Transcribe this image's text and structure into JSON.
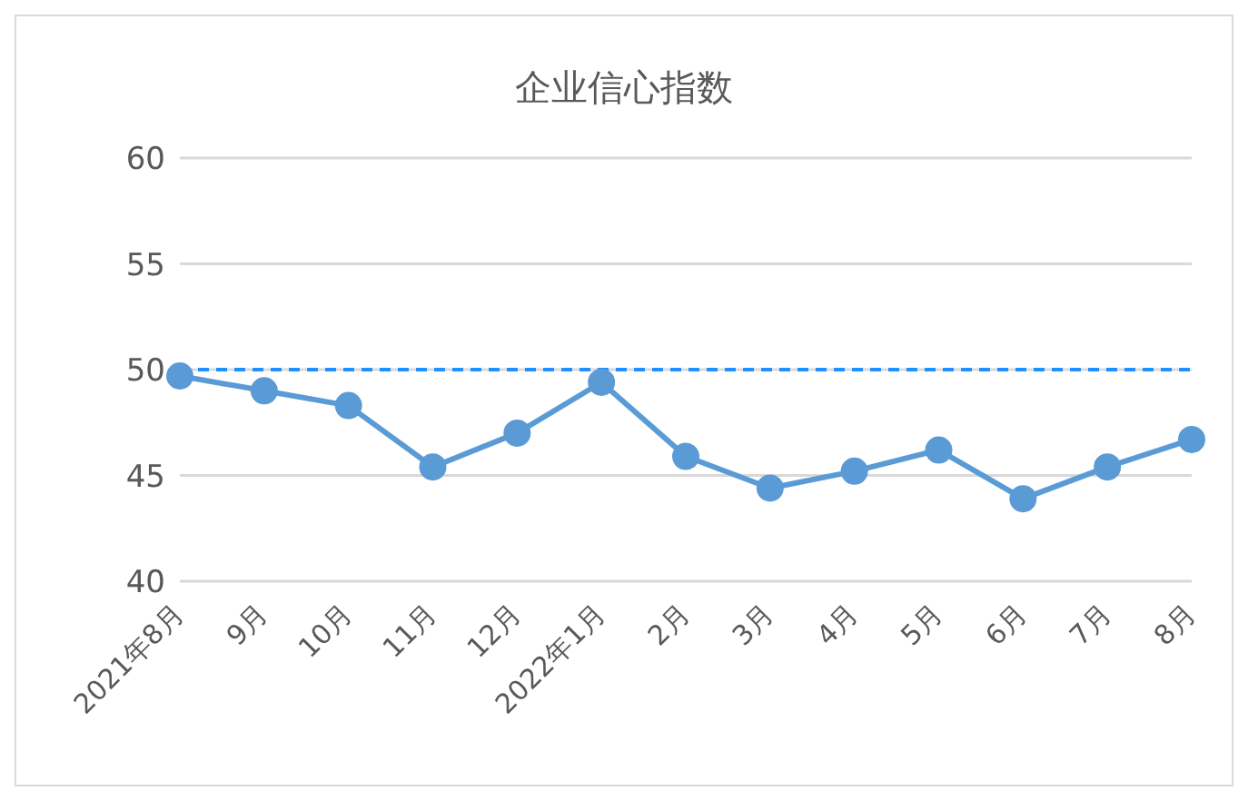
{
  "chart_data": {
    "type": "line",
    "title": "企业信心指数",
    "categories": [
      "2021年8月",
      "9月",
      "10月",
      "11月",
      "12月",
      "2022年1月",
      "2月",
      "3月",
      "4月",
      "5月",
      "6月",
      "7月",
      "8月"
    ],
    "series": [
      {
        "color": "#5b9bd5",
        "values": [
          49.7,
          49.0,
          48.3,
          45.4,
          47.0,
          49.4,
          45.9,
          44.4,
          45.2,
          46.2,
          43.9,
          45.4,
          46.7
        ]
      }
    ],
    "ylim": [
      40,
      60
    ],
    "yticks": [
      40,
      45,
      50,
      55,
      60
    ],
    "grid": "y",
    "marker": "circle",
    "line_style": "solid",
    "legend": false,
    "ref_lines": [
      {
        "axis": "y",
        "value": 50,
        "label": null,
        "color": "#1e90ff",
        "line_style": "dashed"
      }
    ]
  }
}
